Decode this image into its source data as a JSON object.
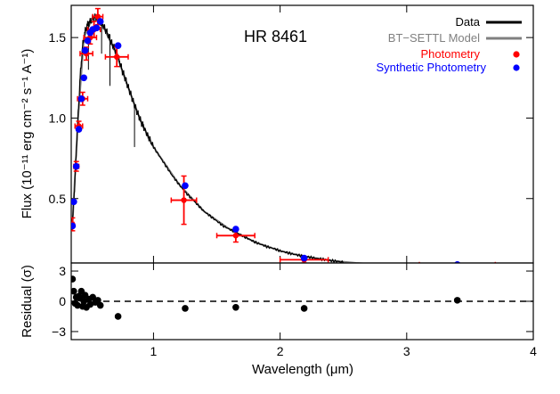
{
  "chart_data": [
    {
      "type": "line",
      "title": "HR 8461",
      "xlabel": "",
      "ylabel": "Flux (10⁻¹¹ erg cm⁻² s⁻¹ A⁻¹)",
      "xlim": [
        0.35,
        4.0
      ],
      "ylim": [
        0.1,
        1.7
      ],
      "y_ticks": [
        "0.5",
        "1.0",
        "1.5"
      ],
      "y_tick_values": [
        0.5,
        1.0,
        1.5
      ],
      "x_ticks_values": [
        1,
        2,
        3,
        4
      ],
      "legend": {
        "placement": "top-right",
        "entries": [
          {
            "label": "Data",
            "color": "#000000",
            "marker": "line"
          },
          {
            "label": "BT−SETTL Model",
            "color": "#808080",
            "marker": "line"
          },
          {
            "label": "Photometry",
            "color": "#ff0000",
            "marker": "dot"
          },
          {
            "label": "Synthetic Photometry",
            "color": "#0000ff",
            "marker": "dot"
          }
        ]
      },
      "series": [
        {
          "name": "Data",
          "color": "#000000",
          "x": [
            0.36,
            0.38,
            0.4,
            0.42,
            0.44,
            0.46,
            0.48,
            0.5,
            0.52,
            0.54,
            0.56,
            0.58,
            0.6,
            0.62,
            0.64,
            0.66,
            0.68,
            0.7,
            0.72,
            0.74,
            0.76,
            0.78,
            0.8,
            0.82,
            0.84,
            0.86,
            0.88,
            0.9,
            0.93,
            0.96,
            1.0,
            1.05,
            1.1,
            1.15,
            1.2,
            1.25,
            1.3,
            1.35,
            1.4,
            1.45,
            1.5,
            1.55,
            1.6,
            1.65,
            1.7,
            1.75,
            1.8,
            1.85,
            1.9,
            1.95,
            2.0,
            2.05,
            2.1,
            2.15,
            2.2,
            2.25,
            2.3,
            2.35,
            2.4,
            2.45,
            2.5
          ],
          "y": [
            0.35,
            0.62,
            0.95,
            1.25,
            1.45,
            1.54,
            1.58,
            1.6,
            1.62,
            1.63,
            1.62,
            1.6,
            1.58,
            1.55,
            1.52,
            1.48,
            1.45,
            1.42,
            1.38,
            1.33,
            1.28,
            1.24,
            1.19,
            1.15,
            1.1,
            1.06,
            1.02,
            0.98,
            0.93,
            0.88,
            0.82,
            0.76,
            0.7,
            0.64,
            0.59,
            0.54,
            0.5,
            0.46,
            0.42,
            0.39,
            0.36,
            0.33,
            0.31,
            0.29,
            0.27,
            0.25,
            0.23,
            0.215,
            0.2,
            0.19,
            0.175,
            0.165,
            0.155,
            0.147,
            0.14,
            0.133,
            0.127,
            0.121,
            0.115,
            0.11,
            0.105
          ]
        },
        {
          "name": "BT−SETTL Model",
          "color": "#808080",
          "x": [
            0.36,
            0.4,
            0.45,
            0.5,
            0.55,
            0.6,
            0.65,
            0.7,
            0.8,
            0.9,
            1.0,
            1.2,
            1.4,
            1.6,
            1.8,
            2.0,
            2.2,
            2.4,
            2.6,
            2.8,
            3.0,
            3.2,
            3.4,
            3.6,
            3.8,
            4.0
          ],
          "y": [
            0.34,
            0.95,
            1.5,
            1.59,
            1.61,
            1.57,
            1.49,
            1.41,
            1.19,
            0.98,
            0.82,
            0.59,
            0.42,
            0.31,
            0.23,
            0.175,
            0.14,
            0.115,
            0.1,
            0.09,
            0.085,
            0.08,
            0.078,
            0.076,
            0.074,
            0.072
          ]
        },
        {
          "name": "Photometry",
          "color": "#ff0000",
          "points": [
            {
              "x": 0.36,
              "y": 0.34,
              "xerr": 0.01,
              "yerr": 0.04
            },
            {
              "x": 0.39,
              "y": 0.7,
              "xerr": 0.02,
              "yerr": 0.03
            },
            {
              "x": 0.41,
              "y": 0.95,
              "xerr": 0.03,
              "yerr": 0.03
            },
            {
              "x": 0.44,
              "y": 1.12,
              "xerr": 0.04,
              "yerr": 0.04
            },
            {
              "x": 0.47,
              "y": 1.4,
              "xerr": 0.05,
              "yerr": 0.04
            },
            {
              "x": 0.5,
              "y": 1.5,
              "xerr": 0.05,
              "yerr": 0.04
            },
            {
              "x": 0.53,
              "y": 1.55,
              "xerr": 0.05,
              "yerr": 0.05
            },
            {
              "x": 0.56,
              "y": 1.63,
              "xerr": 0.04,
              "yerr": 0.05
            },
            {
              "x": 0.71,
              "y": 1.38,
              "xerr": 0.09,
              "yerr": 0.06
            },
            {
              "x": 1.24,
              "y": 0.49,
              "xerr": 0.1,
              "yerr": 0.15
            },
            {
              "x": 1.65,
              "y": 0.27,
              "xerr": 0.15,
              "yerr": 0.04
            },
            {
              "x": 2.19,
              "y": 0.12,
              "xerr": 0.19,
              "yerr": 0.02
            },
            {
              "x": 3.4,
              "y": 0.09,
              "xerr": 0.3,
              "yerr": 0.005
            }
          ]
        },
        {
          "name": "Synthetic Photometry",
          "color": "#0000ff",
          "points": [
            {
              "x": 0.36,
              "y": 0.33
            },
            {
              "x": 0.37,
              "y": 0.48
            },
            {
              "x": 0.39,
              "y": 0.7
            },
            {
              "x": 0.41,
              "y": 0.93
            },
            {
              "x": 0.43,
              "y": 1.12
            },
            {
              "x": 0.45,
              "y": 1.25
            },
            {
              "x": 0.46,
              "y": 1.42
            },
            {
              "x": 0.48,
              "y": 1.48
            },
            {
              "x": 0.5,
              "y": 1.53
            },
            {
              "x": 0.52,
              "y": 1.55
            },
            {
              "x": 0.55,
              "y": 1.56
            },
            {
              "x": 0.58,
              "y": 1.6
            },
            {
              "x": 0.72,
              "y": 1.45
            },
            {
              "x": 1.25,
              "y": 0.58
            },
            {
              "x": 1.65,
              "y": 0.31
            },
            {
              "x": 2.19,
              "y": 0.13
            },
            {
              "x": 3.4,
              "y": 0.09
            }
          ]
        }
      ]
    },
    {
      "type": "scatter",
      "title": "",
      "xlabel": "Wavelength (μm)",
      "ylabel": "Residual (σ)",
      "xlim": [
        0.35,
        4.0
      ],
      "ylim": [
        -3.8,
        3.8
      ],
      "y_ticks": [
        "3",
        "0",
        "−3"
      ],
      "y_tick_values": [
        3,
        0,
        -3
      ],
      "x_ticks": [
        "1",
        "2",
        "3",
        "4"
      ],
      "x_tick_values": [
        1,
        2,
        3,
        4
      ],
      "reference_line": {
        "y": 0,
        "style": "dashed"
      },
      "series": [
        {
          "name": "",
          "color": "#000000",
          "points": [
            {
              "x": 0.36,
              "y": 2.2
            },
            {
              "x": 0.37,
              "y": 1.0
            },
            {
              "x": 0.38,
              "y": -0.2
            },
            {
              "x": 0.39,
              "y": 0.4
            },
            {
              "x": 0.4,
              "y": -0.4
            },
            {
              "x": 0.41,
              "y": 0.5
            },
            {
              "x": 0.42,
              "y": 0.3
            },
            {
              "x": 0.43,
              "y": 1.0
            },
            {
              "x": 0.44,
              "y": -0.5
            },
            {
              "x": 0.45,
              "y": 0.0
            },
            {
              "x": 0.46,
              "y": 0.6
            },
            {
              "x": 0.47,
              "y": -0.6
            },
            {
              "x": 0.49,
              "y": 0.2
            },
            {
              "x": 0.5,
              "y": -0.3
            },
            {
              "x": 0.52,
              "y": 0.4
            },
            {
              "x": 0.54,
              "y": -0.1
            },
            {
              "x": 0.56,
              "y": 0.1
            },
            {
              "x": 0.58,
              "y": -0.4
            },
            {
              "x": 0.72,
              "y": -1.5
            },
            {
              "x": 1.25,
              "y": -0.7
            },
            {
              "x": 1.65,
              "y": -0.6
            },
            {
              "x": 2.19,
              "y": -0.7
            },
            {
              "x": 3.4,
              "y": 0.1
            }
          ]
        }
      ]
    }
  ]
}
